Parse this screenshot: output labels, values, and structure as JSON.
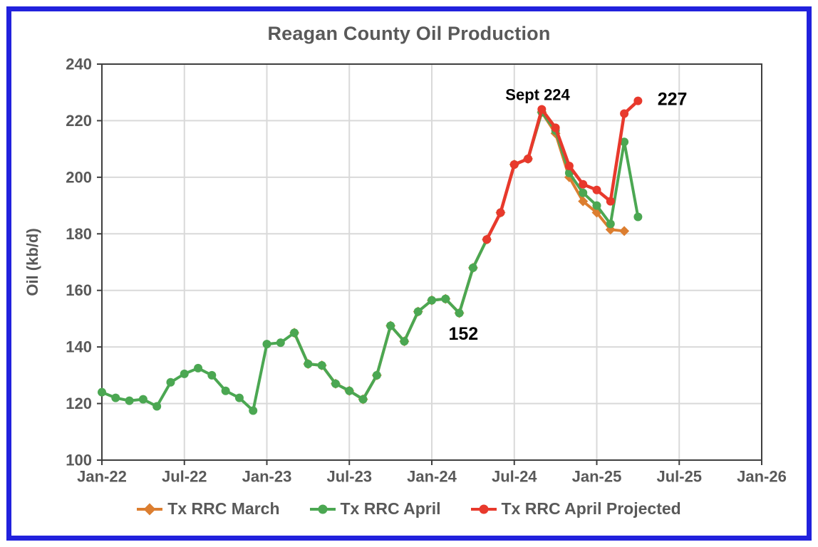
{
  "window": {
    "border_color": "#2121DD",
    "background": "#FFFFFF"
  },
  "colors": {
    "text": "#595959",
    "grid": "#D9D9D9",
    "axis": "#3F3F3F",
    "annotation": "#000000"
  },
  "chart_data": {
    "type": "line",
    "title": "Reagan County Oil Production",
    "xlabel": "",
    "ylabel": "Oil (kb/d)",
    "ylim": [
      100,
      240
    ],
    "ytick_step": 20,
    "ytick_labels": [
      "100",
      "120",
      "140",
      "160",
      "180",
      "200",
      "220",
      "240"
    ],
    "grid": true,
    "legend_position": "bottom",
    "x_axis": {
      "unit": "month",
      "start": "Jan-22",
      "end": "Jan-26",
      "months_total": 48,
      "tick_every_months": 6,
      "tick_labels": [
        "Jan-22",
        "Jul-22",
        "Jan-23",
        "Jul-23",
        "Jan-24",
        "Jul-24",
        "Jan-25",
        "Jul-25",
        "Jan-26"
      ]
    },
    "series": [
      {
        "name": "Tx RRC March",
        "color": "#DC7E30",
        "marker": "diamond",
        "line_width": 4,
        "start_month": "Mar-23",
        "start_index": 14,
        "values": [
          145,
          134,
          133.5,
          127,
          124.5,
          121.5,
          130,
          147.5,
          142,
          152.5,
          156.5,
          157,
          152,
          168,
          178,
          187.5,
          204.5,
          206.5,
          223,
          215.5,
          200,
          191.5,
          187.5,
          181.5,
          181
        ]
      },
      {
        "name": "Tx RRC April",
        "color": "#4BA752",
        "marker": "circle",
        "line_width": 4,
        "start_month": "Jan-22",
        "start_index": 0,
        "values": [
          124,
          122,
          121,
          121.5,
          119,
          127.5,
          130.5,
          132.5,
          130,
          124.5,
          122,
          117.5,
          141,
          141.5,
          145,
          134,
          133.5,
          127,
          124.5,
          121.5,
          130,
          147.5,
          142,
          152.5,
          156.5,
          157,
          152,
          168,
          178,
          187.5,
          204.5,
          206.5,
          223,
          216.5,
          201.5,
          194.5,
          190,
          183.5,
          212.5,
          186
        ]
      },
      {
        "name": "Tx RRC April Projected",
        "color": "#E8392C",
        "marker": "circle",
        "line_width": 4.5,
        "start_month": "May-24",
        "start_index": 28,
        "values": [
          178,
          187.5,
          204.5,
          206.5,
          224,
          217.5,
          204,
          197.5,
          195.5,
          191.5,
          222.5,
          227
        ]
      }
    ],
    "annotations": [
      {
        "text": "Sept 224",
        "month_index": 31.7,
        "value": 229.2,
        "font_size": 22
      },
      {
        "text": "227",
        "month_index": 41.5,
        "value": 227.5,
        "font_size": 25
      },
      {
        "text": "152",
        "month_index": 26.3,
        "value": 144.6,
        "font_size": 25
      }
    ]
  }
}
